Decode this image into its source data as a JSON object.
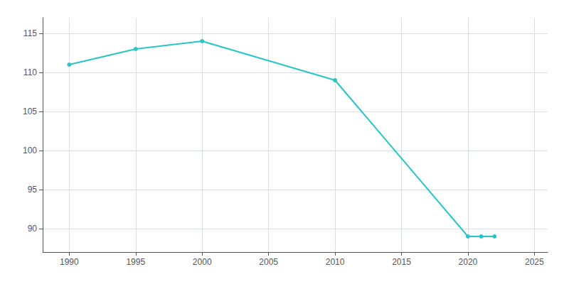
{
  "chart_data": {
    "type": "line",
    "x": [
      1990,
      1995,
      2000,
      2010,
      2020,
      2021,
      2022
    ],
    "values": [
      111,
      113,
      114,
      109,
      89,
      89,
      89
    ],
    "color": "#26c6c6",
    "marker": "circle",
    "xlim": [
      1988,
      2026
    ],
    "xticks": [
      1990,
      1995,
      2000,
      2005,
      2010,
      2015,
      2020,
      2025
    ],
    "ylim": [
      87,
      117
    ],
    "yticks": [
      90,
      95,
      100,
      105,
      110,
      115
    ],
    "grid": true
  }
}
